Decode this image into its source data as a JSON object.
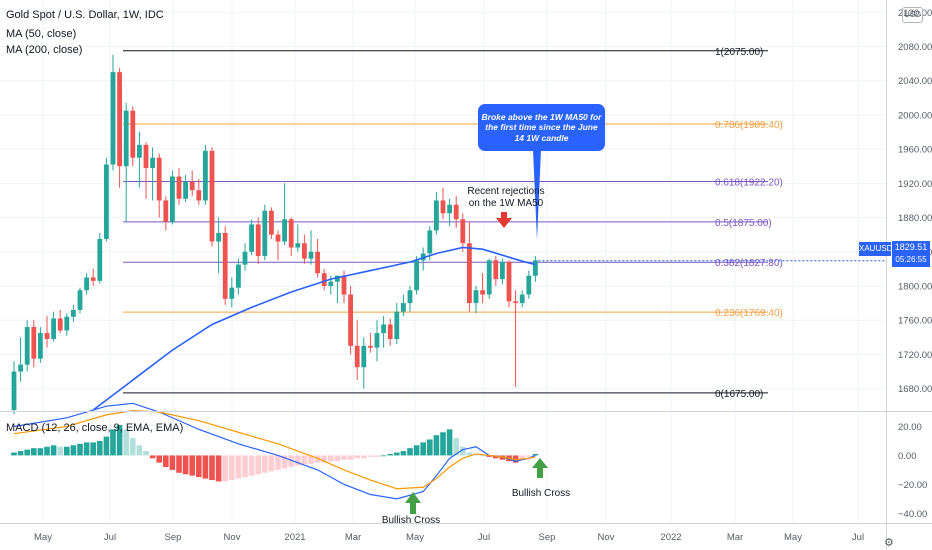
{
  "header": {
    "title": "Gold Spot / U.S. Dollar, 1W, IDC",
    "ma1": "MA (50, close)",
    "ma2": "MA (200, close)",
    "macd": "MACD (12, 26, close, 9, EMA, EMA)"
  },
  "price_axis": {
    "ticks": [
      "2120.00",
      "2080.00",
      "2040.00",
      "2000.00",
      "1960.00",
      "1920.00",
      "1880.00",
      "1840.00",
      "1800.00",
      "1760.00",
      "1720.00",
      "1680.00"
    ],
    "currency": "USD",
    "symbol_tag": "XAUUSD",
    "last_price": "1829.51",
    "countdown": "05:26:55"
  },
  "macd_axis": {
    "ticks": [
      "20.00",
      "0.00",
      "−20.00",
      "−40.00"
    ]
  },
  "time_axis": {
    "ticks": [
      "May",
      "Jul",
      "Sep",
      "Nov",
      "2021",
      "Mar",
      "May",
      "Jul",
      "Sep",
      "Nov",
      "2022",
      "Mar",
      "May",
      "Jul"
    ]
  },
  "fib_levels": [
    "1(2075.00)",
    "0.786(1989.40)",
    "0.618(1922.20)",
    "0.5(1875.00)",
    "0.382(1827.80)",
    "0.236(1769.40)",
    "0(1675.00)"
  ],
  "annotations": {
    "callout": "Broke above the 1W MA50 for the first time since the June 14 1W candle",
    "rejections_line1": "Recent rejections",
    "rejections_line2": "on the 1W MA50",
    "bullish_cross_1": "Bullish Cross",
    "bullish_cross_2": "Bullish Cross"
  },
  "colors": {
    "up": "#26a69a",
    "down": "#ef5350",
    "ma50": "#2962ff",
    "macd_line": "#2962ff",
    "signal_line": "#ff9800",
    "fib_orange": "#f7a043",
    "fib_purple": "#7e57c2",
    "fib_black": "#131722",
    "arrow_green": "#43a047",
    "arrow_red": "#e53935"
  },
  "chart_data": [
    {
      "type": "candlestick",
      "title": "Gold Spot / U.S. Dollar, 1W, IDC",
      "ylim": [
        1655,
        2125
      ],
      "x_index_range": [
        0,
        138
      ],
      "candles": [
        [
          0,
          1655,
          1712,
          1650,
          1700
        ],
        [
          1,
          1700,
          1740,
          1688,
          1708
        ],
        [
          2,
          1708,
          1760,
          1700,
          1752
        ],
        [
          3,
          1752,
          1760,
          1705,
          1715
        ],
        [
          4,
          1715,
          1752,
          1710,
          1745
        ],
        [
          5,
          1745,
          1765,
          1728,
          1738
        ],
        [
          6,
          1738,
          1770,
          1735,
          1762
        ],
        [
          7,
          1762,
          1772,
          1745,
          1748
        ],
        [
          8,
          1748,
          1768,
          1742,
          1764
        ],
        [
          9,
          1764,
          1778,
          1758,
          1772
        ],
        [
          10,
          1772,
          1798,
          1768,
          1795
        ],
        [
          11,
          1795,
          1815,
          1790,
          1810
        ],
        [
          12,
          1810,
          1820,
          1800,
          1806
        ],
        [
          13,
          1806,
          1862,
          1803,
          1855
        ],
        [
          14,
          1855,
          1950,
          1852,
          1942
        ],
        [
          15,
          1942,
          2070,
          1935,
          2050
        ],
        [
          16,
          2050,
          2055,
          1915,
          1940
        ],
        [
          17,
          1940,
          2014,
          1875,
          2005
        ],
        [
          18,
          2005,
          2010,
          1940,
          1950
        ],
        [
          19,
          1950,
          1980,
          1915,
          1965
        ],
        [
          20,
          1965,
          1968,
          1902,
          1938
        ],
        [
          21,
          1938,
          1962,
          1900,
          1950
        ],
        [
          22,
          1950,
          1955,
          1880,
          1900
        ],
        [
          23,
          1900,
          1905,
          1865,
          1875
        ],
        [
          24,
          1875,
          1935,
          1872,
          1928
        ],
        [
          25,
          1928,
          1938,
          1895,
          1902
        ],
        [
          26,
          1902,
          1930,
          1898,
          1922
        ],
        [
          27,
          1922,
          1935,
          1905,
          1912
        ],
        [
          28,
          1912,
          1925,
          1895,
          1900
        ],
        [
          29,
          1900,
          1965,
          1895,
          1958
        ],
        [
          30,
          1958,
          1962,
          1846,
          1852
        ],
        [
          31,
          1852,
          1880,
          1815,
          1862
        ],
        [
          32,
          1862,
          1870,
          1778,
          1785
        ],
        [
          33,
          1785,
          1810,
          1775,
          1798
        ],
        [
          34,
          1798,
          1832,
          1790,
          1825
        ],
        [
          35,
          1825,
          1850,
          1818,
          1840
        ],
        [
          36,
          1840,
          1878,
          1836,
          1872
        ],
        [
          37,
          1872,
          1880,
          1826,
          1835
        ],
        [
          38,
          1835,
          1895,
          1830,
          1888
        ],
        [
          39,
          1888,
          1892,
          1855,
          1860
        ],
        [
          40,
          1860,
          1865,
          1830,
          1852
        ],
        [
          41,
          1852,
          1920,
          1848,
          1878
        ],
        [
          42,
          1878,
          1880,
          1835,
          1845
        ],
        [
          43,
          1845,
          1872,
          1840,
          1850
        ],
        [
          44,
          1850,
          1860,
          1826,
          1832
        ],
        [
          45,
          1832,
          1865,
          1825,
          1840
        ],
        [
          46,
          1840,
          1855,
          1810,
          1815
        ],
        [
          47,
          1815,
          1820,
          1795,
          1800
        ],
        [
          48,
          1800,
          1812,
          1790,
          1805
        ],
        [
          49,
          1805,
          1812,
          1780,
          1812
        ],
        [
          50,
          1812,
          1818,
          1780,
          1790
        ],
        [
          51,
          1790,
          1800,
          1720,
          1730
        ],
        [
          52,
          1730,
          1760,
          1690,
          1705
        ],
        [
          53,
          1705,
          1740,
          1680,
          1730
        ],
        [
          54,
          1730,
          1745,
          1722,
          1728
        ],
        [
          55,
          1728,
          1760,
          1712,
          1745
        ],
        [
          56,
          1745,
          1765,
          1728,
          1755
        ],
        [
          57,
          1755,
          1762,
          1730,
          1738
        ],
        [
          58,
          1738,
          1780,
          1732,
          1770
        ],
        [
          59,
          1770,
          1790,
          1765,
          1780
        ],
        [
          60,
          1780,
          1800,
          1770,
          1795
        ],
        [
          61,
          1795,
          1835,
          1790,
          1830
        ],
        [
          62,
          1830,
          1845,
          1818,
          1838
        ],
        [
          63,
          1838,
          1870,
          1830,
          1865
        ],
        [
          64,
          1865,
          1910,
          1860,
          1900
        ],
        [
          65,
          1900,
          1915,
          1878,
          1885
        ],
        [
          66,
          1885,
          1902,
          1870,
          1895
        ],
        [
          67,
          1895,
          1905,
          1868,
          1878
        ],
        [
          68,
          1878,
          1885,
          1840,
          1850
        ],
        [
          69,
          1850,
          1875,
          1770,
          1780
        ],
        [
          70,
          1780,
          1800,
          1768,
          1795
        ],
        [
          71,
          1795,
          1815,
          1780,
          1790
        ],
        [
          72,
          1790,
          1832,
          1785,
          1830
        ],
        [
          73,
          1830,
          1835,
          1800,
          1808
        ],
        [
          74,
          1808,
          1832,
          1802,
          1828
        ],
        [
          75,
          1828,
          1830,
          1775,
          1782
        ],
        [
          76,
          1782,
          1795,
          1682,
          1780
        ],
        [
          77,
          1780,
          1795,
          1775,
          1790
        ],
        [
          78,
          1790,
          1818,
          1785,
          1812
        ],
        [
          79,
          1812,
          1835,
          1805,
          1830
        ]
      ],
      "ma50": [
        [
          12,
          1655
        ],
        [
          18,
          1690
        ],
        [
          24,
          1725
        ],
        [
          30,
          1755
        ],
        [
          36,
          1775
        ],
        [
          42,
          1793
        ],
        [
          48,
          1808
        ],
        [
          54,
          1818
        ],
        [
          60,
          1828
        ],
        [
          64,
          1838
        ],
        [
          68,
          1845
        ],
        [
          71,
          1843
        ],
        [
          74,
          1836
        ],
        [
          77,
          1829
        ],
        [
          79,
          1825
        ]
      ],
      "fib_levels": [
        {
          "ratio": 1,
          "price": 2075.0
        },
        {
          "ratio": 0.786,
          "price": 1989.4
        },
        {
          "ratio": 0.618,
          "price": 1922.2
        },
        {
          "ratio": 0.5,
          "price": 1875.0
        },
        {
          "ratio": 0.382,
          "price": 1827.8
        },
        {
          "ratio": 0.236,
          "price": 1769.4
        },
        {
          "ratio": 0,
          "price": 1675.0
        }
      ],
      "last_price": 1829.51
    },
    {
      "type": "bar",
      "title": "MACD (12, 26, close, 9, EMA, EMA)",
      "ylim": [
        -46,
        30
      ],
      "histogram": [
        2,
        3,
        4,
        5,
        5,
        6,
        7,
        6,
        6,
        7,
        8,
        9,
        9,
        10,
        13,
        18,
        21,
        18,
        12,
        7,
        3,
        -2,
        -5,
        -8,
        -10,
        -12,
        -13,
        -14,
        -15,
        -16,
        -17,
        -18,
        -18,
        -17,
        -16,
        -15,
        -14,
        -13,
        -12,
        -11,
        -10,
        -9,
        -8,
        -7,
        -6,
        -6,
        -5,
        -5,
        -4,
        -4,
        -3,
        -3,
        -2,
        -2,
        -1,
        -1,
        0,
        1,
        2,
        3,
        5,
        7,
        9,
        11,
        14,
        16,
        18,
        12,
        6,
        2,
        1,
        0,
        -1,
        -2,
        -3,
        -4,
        -5,
        -3,
        -1,
        1
      ],
      "macd_line": [
        [
          0,
          20
        ],
        [
          8,
          26
        ],
        [
          14,
          34
        ],
        [
          18,
          36
        ],
        [
          22,
          30
        ],
        [
          28,
          18
        ],
        [
          34,
          8
        ],
        [
          40,
          0
        ],
        [
          46,
          -10
        ],
        [
          50,
          -20
        ],
        [
          54,
          -27
        ],
        [
          58,
          -30
        ],
        [
          62,
          -25
        ],
        [
          64,
          -14
        ],
        [
          66,
          -2
        ],
        [
          68,
          4
        ],
        [
          70,
          6
        ],
        [
          72,
          0
        ],
        [
          74,
          -1
        ],
        [
          76,
          -4
        ],
        [
          78,
          -2
        ],
        [
          79,
          0
        ]
      ],
      "signal_line": [
        [
          0,
          15
        ],
        [
          8,
          20
        ],
        [
          14,
          28
        ],
        [
          18,
          31
        ],
        [
          22,
          30
        ],
        [
          28,
          24
        ],
        [
          34,
          16
        ],
        [
          40,
          8
        ],
        [
          46,
          -2
        ],
        [
          50,
          -10
        ],
        [
          54,
          -17
        ],
        [
          58,
          -23
        ],
        [
          62,
          -22
        ],
        [
          64,
          -16
        ],
        [
          66,
          -8
        ],
        [
          68,
          -2
        ],
        [
          70,
          1
        ],
        [
          72,
          0
        ],
        [
          74,
          -1
        ],
        [
          76,
          -3
        ],
        [
          78,
          -2
        ],
        [
          79,
          -1
        ]
      ]
    }
  ]
}
